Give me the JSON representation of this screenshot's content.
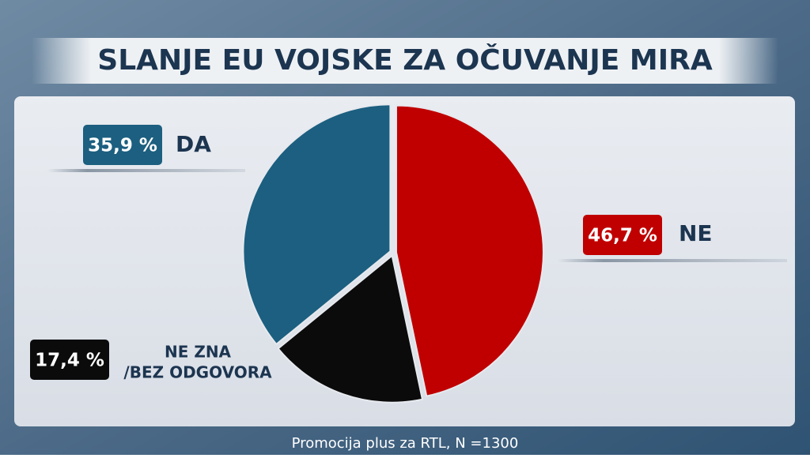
{
  "chart_data": {
    "type": "pie",
    "title": "SLANJE EU VOJSKE ZA OČUVANJE MIRA",
    "categories": [
      "NE",
      [
        "NE ZNA",
        "/BEZ ODGOVORA"
      ],
      "DA"
    ],
    "values": [
      46.7,
      17.4,
      35.9
    ],
    "value_labels": [
      "46,7 %",
      "17,4 %",
      "35,9 %"
    ],
    "colors": [
      "#c00000",
      "#0b0b0b",
      "#1c5f80"
    ],
    "source": "Promocija plus za RTL,  N =1300"
  }
}
